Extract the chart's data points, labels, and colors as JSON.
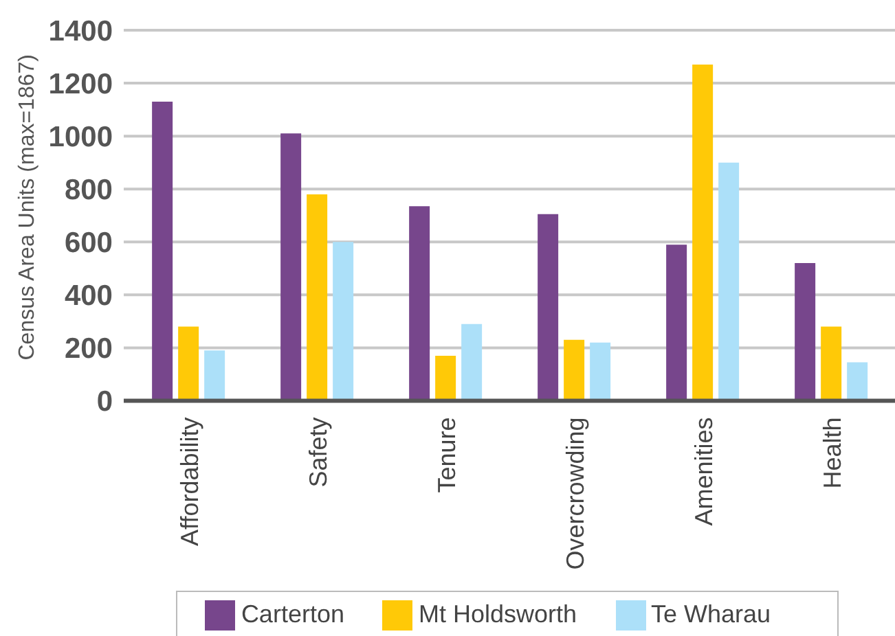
{
  "chart_data": {
    "type": "bar",
    "ylabel": "Census Area Units (max=1867)",
    "categories": [
      "Affordability",
      "Safety",
      "Tenure",
      "Overcrowding",
      "Amenities",
      "Health"
    ],
    "series": [
      {
        "name": "Carterton",
        "color": "#77468c",
        "values": [
          1130,
          1010,
          735,
          705,
          590,
          520
        ]
      },
      {
        "name": "Mt Holdsworth",
        "color": "#ffc907",
        "values": [
          280,
          780,
          170,
          230,
          1270,
          280
        ]
      },
      {
        "name": "Te Wharau",
        "color": "#ace0f9",
        "values": [
          190,
          600,
          290,
          220,
          900,
          145
        ]
      }
    ],
    "ylim": [
      0,
      1400
    ],
    "yticks": [
      0,
      200,
      400,
      600,
      800,
      1000,
      1200,
      1400
    ],
    "grid": "y",
    "legend": "bottom"
  }
}
